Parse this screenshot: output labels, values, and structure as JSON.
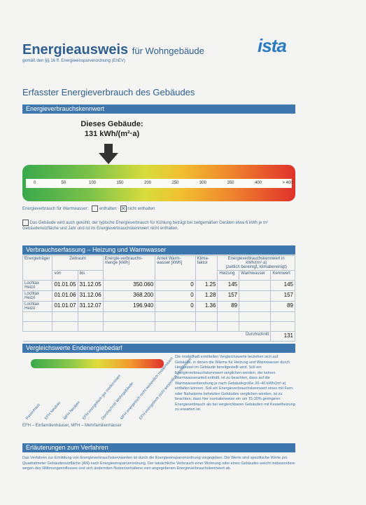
{
  "header": {
    "title": "Energieausweis",
    "title_sub": "für Wohngebäude",
    "law": "gemäß den §§ 16 ff. Energieeinsparverordnung (EnEV)",
    "logo": "ista"
  },
  "section_heading": "Erfasster Energieverbrauch des Gebäudes",
  "kennwert": {
    "bar_label": "Energieverbrauchskennwert",
    "building_label": "Dieses Gebäude:",
    "building_value": "131 kWh/(m²·a)",
    "ticks": [
      "0",
      "50",
      "100",
      "150",
      "200",
      "250",
      "300",
      "350",
      "400",
      "> 400"
    ],
    "marker_value": 131,
    "warmwater_label": "Energieverbrauch für Warmwasser:",
    "option_included": "enthalten",
    "option_not_included": "nicht enthalten",
    "footnote": "Das Gebäude wird auch gekühlt; der typische Energieverbrauch für Kühlung beträgt bei zeitgemäßen Geräten etwa 6 kWh je m² Gebäudenutzfläche und Jahr und ist im Energieverbrauchskennwert nicht enthalten."
  },
  "erfassung": {
    "bar_label": "Verbrauchserfassung – Heizung und Warmwasser",
    "head": {
      "carrier": "Energieträger",
      "period": "Zeitraum",
      "from": "von",
      "to": "bis",
      "amount": "Energie-verbrauchs-menge [kWh]",
      "share": "Anteil Warm-wasser [kWh]",
      "climate": "Klima-faktor",
      "kennwert": "Energieverbrauchskennwert in kWh/(m²·a)",
      "kennwert_sub": "(zeitlich bereinigt, klimabereinigt)",
      "heating": "Heizung",
      "warmwater": "Warmwasser",
      "kw": "Kennwert"
    },
    "rows": [
      {
        "carrier": "Lochtax Heizö",
        "from": "01.01.05",
        "to": "31.12.05",
        "amount": "350.060",
        "share": "0",
        "climate": "1.25",
        "heating": "145",
        "warmwater": "",
        "kw": "145"
      },
      {
        "carrier": "Lochtax Heizö",
        "from": "01.01.06",
        "to": "31.12.06",
        "amount": "368.200",
        "share": "0",
        "climate": "1.28",
        "heating": "157",
        "warmwater": "",
        "kw": "157"
      },
      {
        "carrier": "Lochtax Heizö",
        "from": "01.01.07",
        "to": "31.12.07",
        "amount": "196.940",
        "share": "0",
        "climate": "1.36",
        "heating": "89",
        "warmwater": "",
        "kw": "89"
      }
    ],
    "avg_label": "Durchschnitt",
    "avg_value": "131"
  },
  "vergleich": {
    "bar_label": "Vergleichswerte Endenergiebedarf",
    "labels": [
      "Passivhaus",
      "EFH Neubau",
      "MFH Neubau",
      "EFH energetisch gut modernisiert",
      "Durchschnitt Wohngebäude",
      "MFH energetisch nicht wesentlich modernisiert",
      "EFH energetisch nicht wesentlich modernisiert"
    ],
    "legend": "EFH – Einfamilienhäuser, MFH – Mehrfamilienhäuser",
    "text": "Die modellhaft ermittelten Vergleichswerte beziehen sich auf Gebäude, in denen die Wärme für Heizung und Warmwasser durch Heizkessel im Gebäude bereitgestellt wird. Soll ein Energieverbrauchskennwert verglichen werden, der keinen Warmwasseranteil enthält, ist zu beachten, dass auf die Warmwasserbereitung je nach Gebäudegröße 20–40 kWh/(m²·a) entfallen können. Soll ein Energieverbrauchskennwert eines mit Fern- oder Nahwärme beheizten Gebäudes verglichen werden, ist zu beachten, dass hier normalerweise ein um 15-30% geringerer Energieverbrauch als bei vergleichbaren Gebäuden mit Kesselheizung zu erwarten ist."
  },
  "erlaeuterung": {
    "bar_label": "Erläuterungen zum Verfahren",
    "text": "Das Verfahren zur Ermittlung von Energieverbrauchskennwerten ist durch die Energieeinsparverordnung vorgegeben. Die Werte sind spezifische Werte pro Quadratmeter Gebäudenutzfläche (AN) nach Energieeinsparverordnung. Der tatsächliche Verbrauch einer Wohnung oder eines Gebäudes weicht insbesondere wegen des Witterungseinflusses und sich ändernden Nutzerverhaltens vom angegebenen Energieverbrauchskennwert ab."
  }
}
